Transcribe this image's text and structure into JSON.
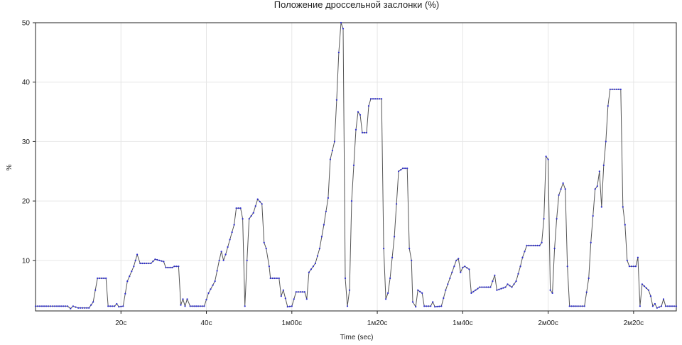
{
  "chart_data": {
    "type": "line",
    "title": "Положение дроссельной заслонки (%)",
    "xlabel": "Time (sec)",
    "ylabel": "%",
    "xlim": [
      0,
      150
    ],
    "ylim": [
      1.5,
      50
    ],
    "grid": true,
    "y_ticks": [
      10,
      20,
      30,
      40,
      50
    ],
    "x_ticks": [
      {
        "value": 20,
        "label": "20с"
      },
      {
        "value": 40,
        "label": "40с"
      },
      {
        "value": 60,
        "label": "1м00с"
      },
      {
        "value": 80,
        "label": "1м20с"
      },
      {
        "value": 100,
        "label": "1м40с"
      },
      {
        "value": 120,
        "label": "2м00с"
      },
      {
        "value": 140,
        "label": "2м20с"
      }
    ],
    "series": [
      {
        "line_color": "#555555",
        "marker_color": "#2a2ad0",
        "points": [
          [
            0,
            2.3
          ],
          [
            4,
            2.3
          ],
          [
            7.5,
            2.3
          ],
          [
            8.2,
            1.9
          ],
          [
            8.8,
            2.3
          ],
          [
            10,
            2.0
          ],
          [
            12.5,
            2.0
          ],
          [
            13.5,
            3.0
          ],
          [
            14.5,
            7.0
          ],
          [
            16.5,
            7.0
          ],
          [
            17,
            2.3
          ],
          [
            18.5,
            2.3
          ],
          [
            19,
            2.7
          ],
          [
            19.5,
            2.2
          ],
          [
            20.5,
            2.3
          ],
          [
            21.5,
            6.5
          ],
          [
            23,
            9.0
          ],
          [
            23.8,
            11.0
          ],
          [
            24.5,
            9.5
          ],
          [
            27,
            9.5
          ],
          [
            28,
            10.2
          ],
          [
            30,
            9.8
          ],
          [
            30.5,
            8.8
          ],
          [
            32,
            8.8
          ],
          [
            32.5,
            9.0
          ],
          [
            33.5,
            9.0
          ],
          [
            34,
            2.5
          ],
          [
            34.5,
            3.5
          ],
          [
            35,
            2.3
          ],
          [
            35.5,
            3.5
          ],
          [
            36.2,
            2.3
          ],
          [
            39.5,
            2.3
          ],
          [
            40.5,
            4.5
          ],
          [
            42,
            6.5
          ],
          [
            43,
            10.0
          ],
          [
            43.5,
            11.5
          ],
          [
            44,
            10.0
          ],
          [
            44.5,
            11.0
          ],
          [
            45.5,
            13.5
          ],
          [
            46.5,
            16.0
          ],
          [
            47,
            18.8
          ],
          [
            48,
            18.8
          ],
          [
            48.5,
            17.0
          ],
          [
            49,
            2.3
          ],
          [
            49.5,
            10.0
          ],
          [
            50,
            17.0
          ],
          [
            51,
            18.0
          ],
          [
            52,
            20.3
          ],
          [
            53,
            19.5
          ],
          [
            53.5,
            13.0
          ],
          [
            54,
            12.0
          ],
          [
            54.7,
            9.0
          ],
          [
            55,
            7.0
          ],
          [
            57,
            7.0
          ],
          [
            57.5,
            4.0
          ],
          [
            58,
            5.0
          ],
          [
            59,
            2.2
          ],
          [
            60,
            2.3
          ],
          [
            61,
            4.7
          ],
          [
            63,
            4.7
          ],
          [
            63.5,
            3.5
          ],
          [
            64,
            8.0
          ],
          [
            65.5,
            9.5
          ],
          [
            66.5,
            12.0
          ],
          [
            67.5,
            16.0
          ],
          [
            68.5,
            20.5
          ],
          [
            69,
            27.0
          ],
          [
            70,
            30.0
          ],
          [
            70.5,
            37.0
          ],
          [
            71,
            45.0
          ],
          [
            71.5,
            50.0
          ],
          [
            72,
            49.0
          ],
          [
            72.5,
            7.0
          ],
          [
            73,
            2.3
          ],
          [
            73.5,
            5.0
          ],
          [
            74,
            20.0
          ],
          [
            75,
            32.0
          ],
          [
            75.5,
            35.0
          ],
          [
            76,
            34.5
          ],
          [
            76.5,
            31.5
          ],
          [
            77.5,
            31.5
          ],
          [
            78,
            36.0
          ],
          [
            78.5,
            37.2
          ],
          [
            81,
            37.2
          ],
          [
            81.5,
            12.0
          ],
          [
            82,
            3.5
          ],
          [
            82.5,
            4.5
          ],
          [
            83,
            7.0
          ],
          [
            84,
            14.0
          ],
          [
            85,
            25.0
          ],
          [
            86,
            25.5
          ],
          [
            87,
            25.5
          ],
          [
            87.5,
            12.0
          ],
          [
            88,
            10.0
          ],
          [
            88.3,
            3.0
          ],
          [
            89,
            2.2
          ],
          [
            89.5,
            5.0
          ],
          [
            90.5,
            4.5
          ],
          [
            91,
            2.3
          ],
          [
            92.5,
            2.3
          ],
          [
            93,
            3.0
          ],
          [
            93.5,
            2.2
          ],
          [
            95,
            2.3
          ],
          [
            96,
            5.0
          ],
          [
            97,
            7.0
          ],
          [
            97.5,
            8.0
          ],
          [
            98.5,
            10.0
          ],
          [
            99,
            10.3
          ],
          [
            99.5,
            8.0
          ],
          [
            100,
            8.8
          ],
          [
            100.5,
            9.0
          ],
          [
            101.5,
            8.5
          ],
          [
            102,
            4.5
          ],
          [
            103,
            5.0
          ],
          [
            104,
            5.5
          ],
          [
            106.5,
            5.5
          ],
          [
            107,
            6.5
          ],
          [
            107.5,
            7.5
          ],
          [
            108,
            5.0
          ],
          [
            110,
            5.5
          ],
          [
            110.5,
            6.0
          ],
          [
            111.5,
            5.5
          ],
          [
            112.5,
            6.5
          ],
          [
            113.5,
            9.0
          ],
          [
            114,
            10.5
          ],
          [
            115,
            12.5
          ],
          [
            118,
            12.5
          ],
          [
            118.5,
            13.0
          ],
          [
            119,
            17.0
          ],
          [
            119.5,
            27.5
          ],
          [
            120,
            27.0
          ],
          [
            120.5,
            5.0
          ],
          [
            121,
            4.5
          ],
          [
            121.5,
            12.0
          ],
          [
            122,
            17.0
          ],
          [
            122.5,
            21.0
          ],
          [
            123,
            22.0
          ],
          [
            123.5,
            23.0
          ],
          [
            124,
            22.0
          ],
          [
            124.5,
            9.0
          ],
          [
            125,
            2.3
          ],
          [
            128.5,
            2.3
          ],
          [
            129.5,
            7.0
          ],
          [
            130,
            13.0
          ],
          [
            131,
            22.0
          ],
          [
            131.5,
            22.5
          ],
          [
            132,
            25.0
          ],
          [
            132.5,
            19.0
          ],
          [
            133,
            26.0
          ],
          [
            133.5,
            30.0
          ],
          [
            134,
            36.0
          ],
          [
            134.5,
            38.8
          ],
          [
            137,
            38.8
          ],
          [
            137.5,
            19.0
          ],
          [
            138,
            16.0
          ],
          [
            138.5,
            10.0
          ],
          [
            139,
            9.0
          ],
          [
            140.5,
            9.0
          ],
          [
            141,
            10.5
          ],
          [
            141.5,
            2.3
          ],
          [
            142,
            6.0
          ],
          [
            143.5,
            5.0
          ],
          [
            144,
            4.0
          ],
          [
            144.5,
            2.3
          ],
          [
            145,
            2.7
          ],
          [
            145.5,
            2.0
          ],
          [
            146.5,
            2.3
          ],
          [
            147,
            3.5
          ],
          [
            147.5,
            2.3
          ],
          [
            150,
            2.3
          ]
        ]
      }
    ]
  }
}
